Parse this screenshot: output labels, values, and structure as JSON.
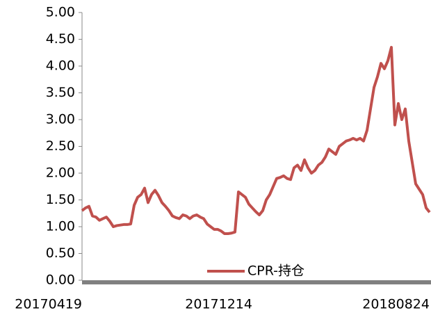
{
  "chart_data": {
    "type": "line",
    "categories": [
      "20170419",
      null,
      null,
      null,
      null,
      null,
      null,
      null,
      null,
      null,
      null,
      null,
      null,
      null,
      null,
      null,
      null,
      null,
      null,
      null,
      null,
      null,
      null,
      null,
      null,
      null,
      null,
      null,
      null,
      null,
      null,
      null,
      null,
      null,
      null,
      null,
      null,
      null,
      null,
      null,
      null,
      null,
      null,
      null,
      null,
      null,
      null,
      null,
      null,
      "20171214",
      null,
      null,
      null,
      null,
      null,
      null,
      null,
      null,
      null,
      null,
      null,
      null,
      null,
      null,
      null,
      null,
      null,
      null,
      null,
      null,
      null,
      null,
      null,
      null,
      null,
      null,
      null,
      null,
      null,
      null,
      null,
      null,
      null,
      null,
      null,
      null,
      null,
      null,
      null,
      null,
      null,
      null,
      null,
      null,
      null,
      null,
      null,
      null,
      null,
      null,
      "20180824"
    ],
    "series": [
      {
        "name": "CPR-持仓",
        "color": "#c0504d",
        "values": [
          1.3,
          1.35,
          1.38,
          1.2,
          1.18,
          1.12,
          1.15,
          1.18,
          1.1,
          1.0,
          1.02,
          1.03,
          1.04,
          1.04,
          1.05,
          1.4,
          1.55,
          1.6,
          1.72,
          1.45,
          1.6,
          1.68,
          1.58,
          1.45,
          1.38,
          1.3,
          1.2,
          1.17,
          1.15,
          1.22,
          1.2,
          1.15,
          1.2,
          1.22,
          1.18,
          1.15,
          1.05,
          1.0,
          0.95,
          0.95,
          0.92,
          0.87,
          0.87,
          0.88,
          0.9,
          1.65,
          1.6,
          1.55,
          1.42,
          1.35,
          1.28,
          1.22,
          1.3,
          1.5,
          1.6,
          1.75,
          1.9,
          1.92,
          1.95,
          1.9,
          1.88,
          2.1,
          2.15,
          2.05,
          2.25,
          2.1,
          2.0,
          2.05,
          2.15,
          2.2,
          2.3,
          2.45,
          2.4,
          2.35,
          2.5,
          2.55,
          2.6,
          2.62,
          2.65,
          2.62,
          2.65,
          2.6,
          2.8,
          3.2,
          3.6,
          3.8,
          4.05,
          3.95,
          4.1,
          4.35,
          2.9,
          3.3,
          3.0,
          3.2,
          2.6,
          2.2,
          1.8,
          1.7,
          1.6,
          1.35,
          1.27
        ]
      }
    ],
    "ylim": [
      0,
      5
    ],
    "yticks": [
      {
        "value": 0,
        "label": "0.00"
      },
      {
        "value": 0.5,
        "label": "0.50"
      },
      {
        "value": 1,
        "label": "1.00"
      },
      {
        "value": 1.5,
        "label": "1.50"
      },
      {
        "value": 2,
        "label": "2.00"
      },
      {
        "value": 2.5,
        "label": "2.50"
      },
      {
        "value": 3,
        "label": "3.00"
      },
      {
        "value": 3.5,
        "label": "3.50"
      },
      {
        "value": 4,
        "label": "4.00"
      },
      {
        "value": 4.5,
        "label": "4.50"
      },
      {
        "value": 5,
        "label": "5.00"
      }
    ],
    "legend": "bottom"
  }
}
